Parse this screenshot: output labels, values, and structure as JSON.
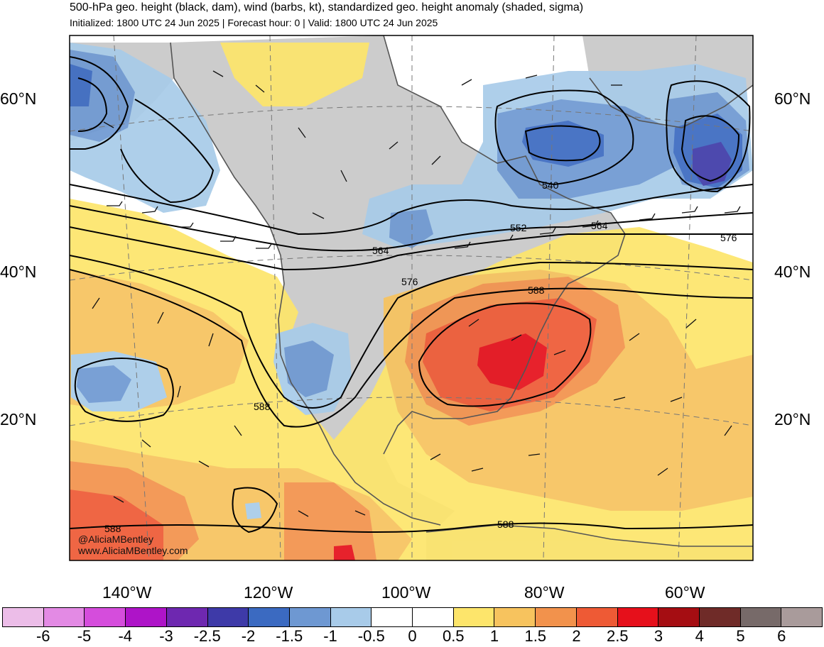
{
  "title": "500-hPa geo. height (black, dam), wind (barbs, kt), standardized geo. height anomaly (shaded, sigma)",
  "subtitle": "Initialized: 1800 UTC 24 Jun 2025 | Forecast hour: 0 | Valid: 1800 UTC 24 Jun 2025",
  "lat_labels": [
    "60°N",
    "40°N",
    "20°N"
  ],
  "lon_labels": [
    "140°W",
    "120°W",
    "100°W",
    "80°W",
    "60°W"
  ],
  "contour_labels": [
    "540",
    "552",
    "564",
    "564",
    "576",
    "576",
    "588",
    "588",
    "588",
    "588"
  ],
  "credit": {
    "handle": "@AliciaMBentley",
    "site": "www.AliciaMBentley.com"
  },
  "colorbar": {
    "ticks": [
      "-6",
      "-5",
      "-4",
      "-3",
      "-2.5",
      "-2",
      "-1.5",
      "-1",
      "-0.5",
      "0",
      "0.5",
      "1",
      "1.5",
      "2",
      "2.5",
      "3",
      "4",
      "5",
      "6"
    ],
    "colors": [
      "#ecbde8",
      "#e38ae4",
      "#d54ddc",
      "#ae14c8",
      "#6e28b0",
      "#3e3aa8",
      "#3b6ac1",
      "#6e98d2",
      "#a8cbe9",
      "#ffffff",
      "#ffffff",
      "#fde56b",
      "#f7c35e",
      "#f2924c",
      "#ee5a35",
      "#e6101b",
      "#a50d12",
      "#6f2b28",
      "#776a69",
      "#a99b9b"
    ]
  },
  "legend_colors": {
    "land": "#cccccc",
    "ocean": "#ffffff",
    "contour": "#000000"
  }
}
